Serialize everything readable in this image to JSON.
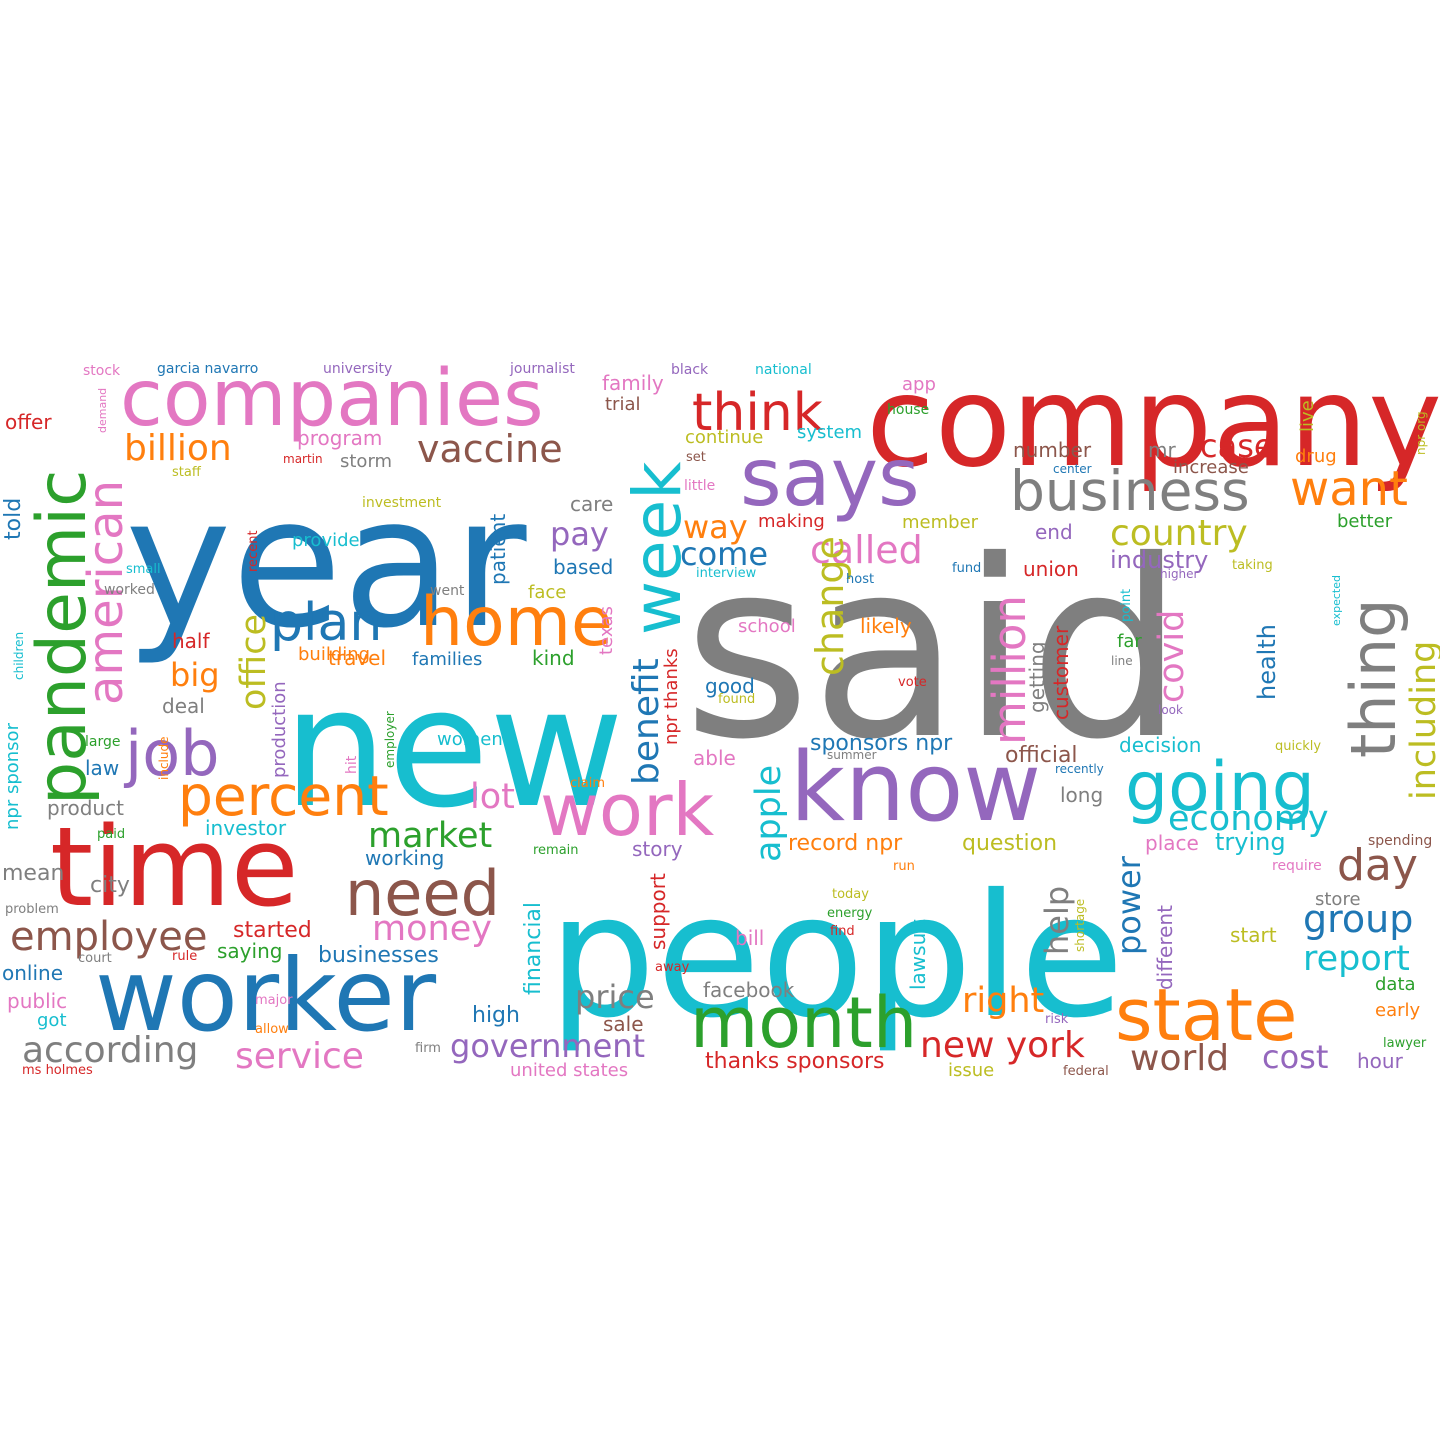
{
  "palette": {
    "blue": "#1f77b4",
    "orange": "#ff7f0e",
    "green": "#2ca02c",
    "red": "#d62728",
    "purple": "#9467bd",
    "brown": "#8c564b",
    "pink": "#e377c2",
    "gray": "#7f7f7f",
    "olive": "#bcbd22",
    "cyan": "#17becf"
  },
  "words": [
    {
      "text": "said",
      "color": "gray"
    },
    {
      "text": "people",
      "color": "cyan"
    },
    {
      "text": "year",
      "color": "blue"
    },
    {
      "text": "new",
      "color": "cyan"
    },
    {
      "text": "company",
      "color": "red"
    },
    {
      "text": "time",
      "color": "red"
    },
    {
      "text": "worker",
      "color": "blue"
    },
    {
      "text": "know",
      "color": "purple"
    },
    {
      "text": "says",
      "color": "purple"
    },
    {
      "text": "companies",
      "color": "pink"
    },
    {
      "text": "pandemic",
      "color": "green"
    },
    {
      "text": "state",
      "color": "orange"
    },
    {
      "text": "work",
      "color": "pink"
    },
    {
      "text": "month",
      "color": "green"
    },
    {
      "text": "going",
      "color": "cyan"
    },
    {
      "text": "home",
      "color": "orange"
    },
    {
      "text": "week",
      "color": "cyan"
    },
    {
      "text": "thing",
      "color": "gray"
    },
    {
      "text": "job",
      "color": "purple"
    },
    {
      "text": "need",
      "color": "brown"
    },
    {
      "text": "business",
      "color": "gray"
    },
    {
      "text": "percent",
      "color": "orange"
    },
    {
      "text": "think",
      "color": "red"
    },
    {
      "text": "plan",
      "color": "blue"
    },
    {
      "text": "american",
      "color": "pink"
    },
    {
      "text": "million",
      "color": "pink"
    },
    {
      "text": "want",
      "color": "orange"
    },
    {
      "text": "employee",
      "color": "brown"
    },
    {
      "text": "including",
      "color": "olive"
    },
    {
      "text": "country",
      "color": "olive"
    },
    {
      "text": "day",
      "color": "brown"
    },
    {
      "text": "vaccine",
      "color": "brown"
    },
    {
      "text": "billion",
      "color": "orange"
    },
    {
      "text": "called",
      "color": "pink"
    },
    {
      "text": "economy",
      "color": "cyan"
    },
    {
      "text": "benefit",
      "color": "blue"
    },
    {
      "text": "market",
      "color": "green"
    },
    {
      "text": "money",
      "color": "pink"
    },
    {
      "text": "government",
      "color": "purple"
    },
    {
      "text": "according",
      "color": "gray"
    },
    {
      "text": "service",
      "color": "pink"
    },
    {
      "text": "group",
      "color": "blue"
    },
    {
      "text": "report",
      "color": "cyan"
    },
    {
      "text": "change",
      "color": "olive"
    },
    {
      "text": "covid",
      "color": "pink"
    },
    {
      "text": "world",
      "color": "brown"
    },
    {
      "text": "cost",
      "color": "purple"
    },
    {
      "text": "price",
      "color": "gray"
    },
    {
      "text": "new york",
      "color": "red"
    },
    {
      "text": "right",
      "color": "orange"
    },
    {
      "text": "lot",
      "color": "pink"
    },
    {
      "text": "case",
      "color": "red"
    },
    {
      "text": "way",
      "color": "orange"
    },
    {
      "text": "apple",
      "color": "cyan"
    },
    {
      "text": "office",
      "color": "olive"
    },
    {
      "text": "come",
      "color": "blue"
    },
    {
      "text": "pay",
      "color": "purple"
    },
    {
      "text": "big",
      "color": "orange"
    },
    {
      "text": "help",
      "color": "gray"
    },
    {
      "text": "power",
      "color": "blue"
    },
    {
      "text": "industry",
      "color": "purple"
    },
    {
      "text": "trying",
      "color": "cyan"
    },
    {
      "text": "health",
      "color": "blue"
    },
    {
      "text": "record npr",
      "color": "orange"
    },
    {
      "text": "question",
      "color": "olive"
    },
    {
      "text": "sponsors npr",
      "color": "blue"
    },
    {
      "text": "official",
      "color": "brown"
    },
    {
      "text": "thanks sponsors",
      "color": "red"
    },
    {
      "text": "businesses",
      "color": "blue"
    },
    {
      "text": "started",
      "color": "red"
    },
    {
      "text": "saying",
      "color": "green"
    },
    {
      "text": "working",
      "color": "blue"
    },
    {
      "text": "investor",
      "color": "cyan"
    },
    {
      "text": "story",
      "color": "purple"
    },
    {
      "text": "financial",
      "color": "cyan"
    },
    {
      "text": "support",
      "color": "red"
    },
    {
      "text": "lawsuit",
      "color": "cyan"
    },
    {
      "text": "different",
      "color": "purple"
    },
    {
      "text": "customer",
      "color": "red"
    },
    {
      "text": "getting",
      "color": "gray"
    },
    {
      "text": "union",
      "color": "red"
    },
    {
      "text": "decision",
      "color": "cyan"
    },
    {
      "text": "long",
      "color": "gray"
    },
    {
      "text": "place",
      "color": "pink"
    },
    {
      "text": "facebook",
      "color": "gray"
    },
    {
      "text": "high",
      "color": "blue"
    },
    {
      "text": "sale",
      "color": "brown"
    },
    {
      "text": "united states",
      "color": "pink"
    },
    {
      "text": "bill",
      "color": "pink"
    },
    {
      "text": "start",
      "color": "olive"
    },
    {
      "text": "store",
      "color": "gray"
    },
    {
      "text": "data",
      "color": "green"
    },
    {
      "text": "early",
      "color": "orange"
    },
    {
      "text": "hour",
      "color": "purple"
    },
    {
      "text": "issue",
      "color": "olive"
    },
    {
      "text": "product",
      "color": "gray"
    },
    {
      "text": "mean",
      "color": "gray"
    },
    {
      "text": "city",
      "color": "gray"
    },
    {
      "text": "deal",
      "color": "gray"
    },
    {
      "text": "law",
      "color": "blue"
    },
    {
      "text": "half",
      "color": "red"
    },
    {
      "text": "travel",
      "color": "orange"
    },
    {
      "text": "building",
      "color": "orange"
    },
    {
      "text": "families",
      "color": "blue"
    },
    {
      "text": "kind",
      "color": "green"
    },
    {
      "text": "based",
      "color": "blue"
    },
    {
      "text": "face",
      "color": "olive"
    },
    {
      "text": "care",
      "color": "gray"
    },
    {
      "text": "patient",
      "color": "blue"
    },
    {
      "text": "texas",
      "color": "pink"
    },
    {
      "text": "provide",
      "color": "cyan"
    },
    {
      "text": "women",
      "color": "cyan"
    },
    {
      "text": "able",
      "color": "pink"
    },
    {
      "text": "good",
      "color": "blue"
    },
    {
      "text": "school",
      "color": "pink"
    },
    {
      "text": "likely",
      "color": "orange"
    },
    {
      "text": "making",
      "color": "red"
    },
    {
      "text": "member",
      "color": "olive"
    },
    {
      "text": "end",
      "color": "purple"
    },
    {
      "text": "number",
      "color": "brown"
    },
    {
      "text": "mr",
      "color": "gray"
    },
    {
      "text": "increase",
      "color": "brown"
    },
    {
      "text": "drug",
      "color": "orange"
    },
    {
      "text": "better",
      "color": "green"
    },
    {
      "text": "far",
      "color": "green"
    },
    {
      "text": "continue",
      "color": "olive"
    },
    {
      "text": "system",
      "color": "cyan"
    },
    {
      "text": "program",
      "color": "pink"
    },
    {
      "text": "storm",
      "color": "gray"
    },
    {
      "text": "family",
      "color": "pink"
    },
    {
      "text": "trial",
      "color": "brown"
    },
    {
      "text": "told",
      "color": "blue"
    },
    {
      "text": "offer",
      "color": "red"
    },
    {
      "text": "online",
      "color": "blue"
    },
    {
      "text": "public",
      "color": "pink"
    },
    {
      "text": "got",
      "color": "cyan"
    },
    {
      "text": "stock",
      "color": "pink"
    },
    {
      "text": "garcia navarro",
      "color": "blue"
    },
    {
      "text": "university",
      "color": "purple"
    },
    {
      "text": "journalist",
      "color": "purple"
    },
    {
      "text": "black",
      "color": "purple"
    },
    {
      "text": "national",
      "color": "cyan"
    },
    {
      "text": "app",
      "color": "pink"
    },
    {
      "text": "house",
      "color": "green"
    },
    {
      "text": "live",
      "color": "olive"
    },
    {
      "text": "npr org",
      "color": "olive"
    },
    {
      "text": "set",
      "color": "brown"
    },
    {
      "text": "little",
      "color": "pink"
    },
    {
      "text": "investment",
      "color": "olive"
    },
    {
      "text": "staff",
      "color": "olive"
    },
    {
      "text": "martin",
      "color": "red"
    },
    {
      "text": "small",
      "color": "cyan"
    },
    {
      "text": "worked",
      "color": "gray"
    },
    {
      "text": "recent",
      "color": "red"
    },
    {
      "text": "went",
      "color": "gray"
    },
    {
      "text": "interview",
      "color": "cyan"
    },
    {
      "text": "fund",
      "color": "blue"
    },
    {
      "text": "host",
      "color": "blue"
    },
    {
      "text": "center",
      "color": "blue"
    },
    {
      "text": "higher",
      "color": "purple"
    },
    {
      "text": "taking",
      "color": "olive"
    },
    {
      "text": "point",
      "color": "cyan"
    },
    {
      "text": "expected",
      "color": "cyan"
    },
    {
      "text": "line",
      "color": "gray"
    },
    {
      "text": "vote",
      "color": "red"
    },
    {
      "text": "found",
      "color": "olive"
    },
    {
      "text": "look",
      "color": "purple"
    },
    {
      "text": "quickly",
      "color": "olive"
    },
    {
      "text": "recently",
      "color": "blue"
    },
    {
      "text": "summer",
      "color": "gray"
    },
    {
      "text": "claim",
      "color": "orange"
    },
    {
      "text": "remain",
      "color": "green"
    },
    {
      "text": "today",
      "color": "olive"
    },
    {
      "text": "energy",
      "color": "green"
    },
    {
      "text": "find",
      "color": "red"
    },
    {
      "text": "run",
      "color": "orange"
    },
    {
      "text": "shortage",
      "color": "olive"
    },
    {
      "text": "require",
      "color": "pink"
    },
    {
      "text": "spending",
      "color": "brown"
    },
    {
      "text": "risk",
      "color": "purple"
    },
    {
      "text": "lawyer",
      "color": "green"
    },
    {
      "text": "federal",
      "color": "brown"
    },
    {
      "text": "firm",
      "color": "gray"
    },
    {
      "text": "away",
      "color": "red"
    },
    {
      "text": "paid",
      "color": "green"
    },
    {
      "text": "problem",
      "color": "gray"
    },
    {
      "text": "court",
      "color": "gray"
    },
    {
      "text": "rule",
      "color": "red"
    },
    {
      "text": "major",
      "color": "pink"
    },
    {
      "text": "allow",
      "color": "orange"
    },
    {
      "text": "ms holmes",
      "color": "red"
    },
    {
      "text": "large",
      "color": "green"
    },
    {
      "text": "include",
      "color": "orange"
    },
    {
      "text": "employer",
      "color": "green"
    },
    {
      "text": "hit",
      "color": "pink"
    },
    {
      "text": "production",
      "color": "purple"
    },
    {
      "text": "npr sponsor",
      "color": "cyan"
    },
    {
      "text": "npr thanks",
      "color": "red"
    },
    {
      "text": "children",
      "color": "cyan"
    },
    {
      "text": "demand",
      "color": "pink"
    }
  ]
}
